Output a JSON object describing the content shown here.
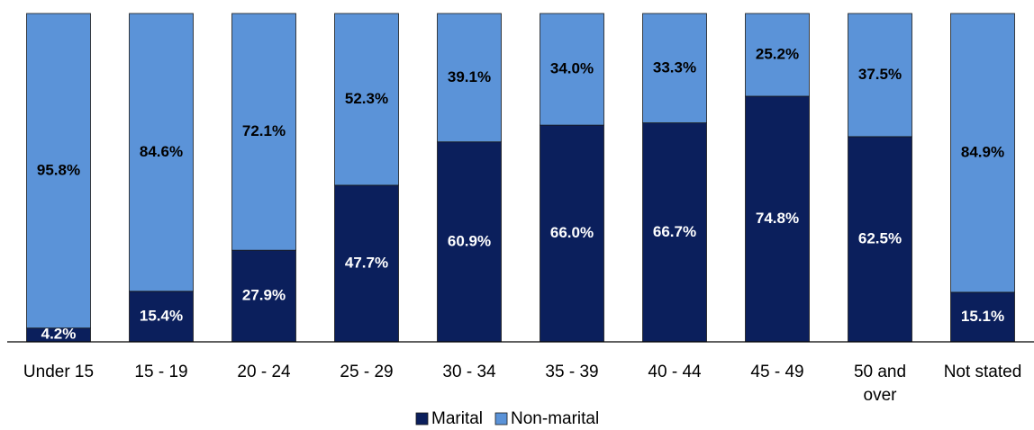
{
  "chart_data": {
    "type": "stacked_bar",
    "categories": [
      "Under 15",
      "15 - 19",
      "20 - 24",
      "25 - 29",
      "30 - 34",
      "35 - 39",
      "40 - 44",
      "45 - 49",
      "50 and over",
      "Not stated"
    ],
    "series": [
      {
        "name": "Marital",
        "color": "#0b1f5c",
        "values": [
          4.2,
          15.4,
          27.9,
          47.7,
          60.9,
          66.0,
          66.7,
          74.8,
          62.5,
          15.1
        ],
        "value_labels": [
          "4.2%",
          "15.4%",
          "27.9%",
          "47.7%",
          "60.9%",
          "66.0%",
          "66.7%",
          "74.8%",
          "62.5%",
          "15.1%"
        ]
      },
      {
        "name": "Non-marital",
        "color": "#5b93d8",
        "values": [
          95.8,
          84.6,
          72.1,
          52.3,
          39.1,
          34.0,
          33.3,
          25.2,
          37.5,
          84.9
        ],
        "value_labels": [
          "95.8%",
          "84.6%",
          "72.1%",
          "52.3%",
          "39.1%",
          "34.0%",
          "33.3%",
          "25.2%",
          "37.5%",
          "84.9%"
        ]
      }
    ],
    "ylim": [
      0,
      100
    ],
    "legend": "bottom"
  }
}
